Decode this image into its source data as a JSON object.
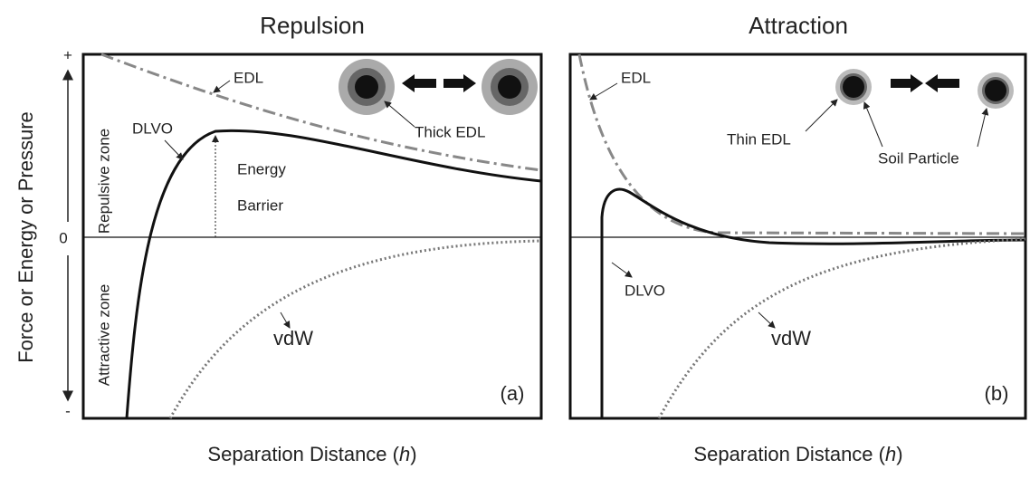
{
  "y_axis": {
    "label": "Force or Energy or Pressure",
    "plus": "+",
    "zero": "0",
    "minus": "-"
  },
  "panels": [
    {
      "title": "Repulsion",
      "tag": "(a)",
      "x_label": {
        "before": "Separation Distance (",
        "var": "h",
        "after": ")"
      },
      "zones": {
        "repulsive": "Repulsive zone",
        "attractive": "Attractive zone"
      },
      "labels": {
        "edl": "EDL",
        "dlvo": "DLVO",
        "thick_edl": "Thick EDL",
        "energy": "Energy",
        "barrier": "Barrier",
        "vdw": "vdW"
      }
    },
    {
      "title": "Attraction",
      "tag": "(b)",
      "x_label": {
        "before": "Separation Distance (",
        "var": "h",
        "after": ")"
      },
      "labels": {
        "edl": "EDL",
        "thin_edl": "Thin EDL",
        "soil_particle": "Soil Particle",
        "dlvo": "DLVO",
        "vdw": "vdW"
      }
    }
  ]
}
